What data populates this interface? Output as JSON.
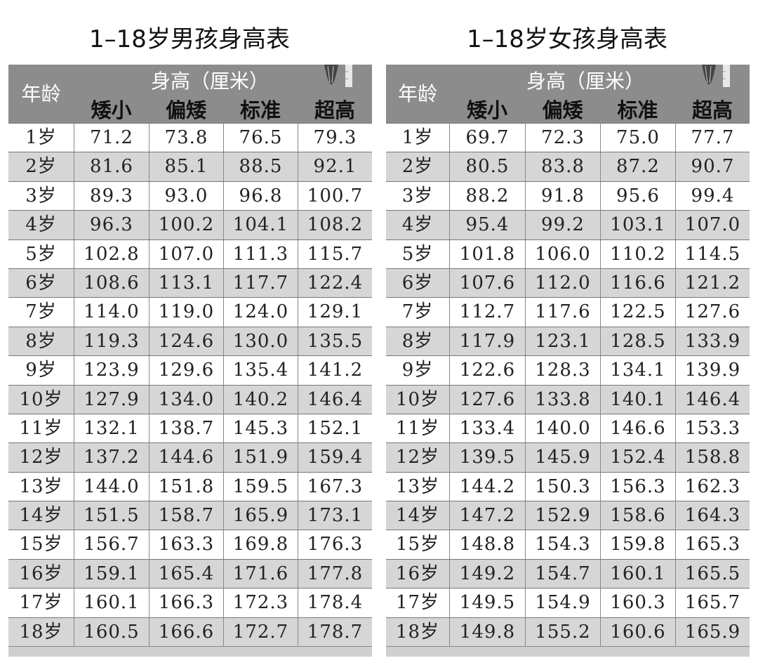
{
  "tables": [
    {
      "title": "1–18岁男孩身高表",
      "age_header": "年龄",
      "unit_header": "身高（厘米）",
      "columns": [
        "矮小",
        "偏矮",
        "标准",
        "超高"
      ],
      "rows": [
        [
          "1岁",
          "71.2",
          "73.8",
          "76.5",
          "79.3"
        ],
        [
          "2岁",
          "81.6",
          "85.1",
          "88.5",
          "92.1"
        ],
        [
          "3岁",
          "89.3",
          "93.0",
          "96.8",
          "100.7"
        ],
        [
          "4岁",
          "96.3",
          "100.2",
          "104.1",
          "108.2"
        ],
        [
          "5岁",
          "102.8",
          "107.0",
          "111.3",
          "115.7"
        ],
        [
          "6岁",
          "108.6",
          "113.1",
          "117.7",
          "122.4"
        ],
        [
          "7岁",
          "114.0",
          "119.0",
          "124.0",
          "129.1"
        ],
        [
          "8岁",
          "119.3",
          "124.6",
          "130.0",
          "135.5"
        ],
        [
          "9岁",
          "123.9",
          "129.6",
          "135.4",
          "141.2"
        ],
        [
          "10岁",
          "127.9",
          "134.0",
          "140.2",
          "146.4"
        ],
        [
          "11岁",
          "132.1",
          "138.7",
          "145.3",
          "152.1"
        ],
        [
          "12岁",
          "137.2",
          "144.6",
          "151.9",
          "159.4"
        ],
        [
          "13岁",
          "144.0",
          "151.8",
          "159.5",
          "167.3"
        ],
        [
          "14岁",
          "151.5",
          "158.7",
          "165.9",
          "173.1"
        ],
        [
          "15岁",
          "156.7",
          "163.3",
          "169.8",
          "176.3"
        ],
        [
          "16岁",
          "159.1",
          "165.4",
          "171.6",
          "177.8"
        ],
        [
          "17岁",
          "160.1",
          "166.3",
          "172.3",
          "178.4"
        ],
        [
          "18岁",
          "160.5",
          "166.6",
          "172.7",
          "178.7"
        ]
      ]
    },
    {
      "title": "1–18岁女孩身高表",
      "age_header": "年龄",
      "unit_header": "身高（厘米）",
      "columns": [
        "矮小",
        "偏矮",
        "标准",
        "超高"
      ],
      "rows": [
        [
          "1岁",
          "69.7",
          "72.3",
          "75.0",
          "77.7"
        ],
        [
          "2岁",
          "80.5",
          "83.8",
          "87.2",
          "90.7"
        ],
        [
          "3岁",
          "88.2",
          "91.8",
          "95.6",
          "99.4"
        ],
        [
          "4岁",
          "95.4",
          "99.2",
          "103.1",
          "107.0"
        ],
        [
          "5岁",
          "101.8",
          "106.0",
          "110.2",
          "114.5"
        ],
        [
          "6岁",
          "107.6",
          "112.0",
          "116.6",
          "121.2"
        ],
        [
          "7岁",
          "112.7",
          "117.6",
          "122.5",
          "127.6"
        ],
        [
          "8岁",
          "117.9",
          "123.1",
          "128.5",
          "133.9"
        ],
        [
          "9岁",
          "122.6",
          "128.3",
          "134.1",
          "139.9"
        ],
        [
          "10岁",
          "127.6",
          "133.8",
          "140.1",
          "146.4"
        ],
        [
          "11岁",
          "133.4",
          "140.0",
          "146.6",
          "153.3"
        ],
        [
          "12岁",
          "139.5",
          "145.9",
          "152.4",
          "158.8"
        ],
        [
          "13岁",
          "144.2",
          "150.3",
          "156.3",
          "162.3"
        ],
        [
          "14岁",
          "147.2",
          "152.9",
          "158.6",
          "164.3"
        ],
        [
          "15岁",
          "148.8",
          "154.3",
          "159.8",
          "165.3"
        ],
        [
          "16岁",
          "149.2",
          "154.7",
          "160.1",
          "165.5"
        ],
        [
          "17岁",
          "149.5",
          "154.9",
          "160.3",
          "165.7"
        ],
        [
          "18岁",
          "149.8",
          "155.2",
          "160.6",
          "165.9"
        ]
      ]
    }
  ],
  "colors": {
    "header": "#8c8c8c",
    "alt_row": "#d6d6d6"
  },
  "icons": [
    "height-measuring-figure-icon"
  ]
}
